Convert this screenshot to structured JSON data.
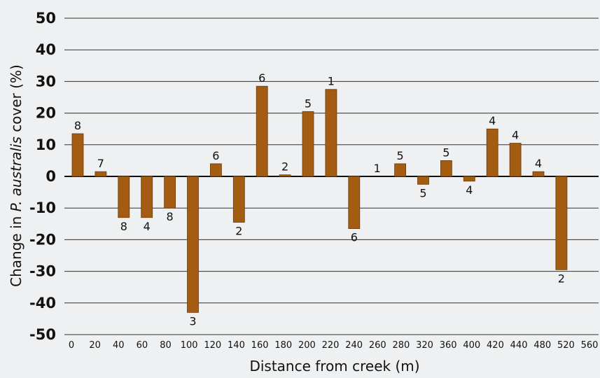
{
  "chart_data": {
    "type": "bar",
    "xlabel": "Distance from creek (m)",
    "ylabel_prefix": "Change in ",
    "ylabel_italic": "P. australis",
    "ylabel_suffix": " cover (%)",
    "ylim": [
      -50,
      50
    ],
    "yticks": [
      50,
      40,
      30,
      20,
      10,
      0,
      -10,
      -20,
      -30,
      -40,
      -50
    ],
    "grid": true,
    "x_tick_labels": [
      "0",
      "20",
      "40",
      "60",
      "80",
      "100",
      "120",
      "140",
      "160",
      "180",
      "200",
      "220",
      "240",
      "260",
      "280",
      "320",
      "360",
      "400",
      "420",
      "440",
      "480",
      "520",
      "560"
    ],
    "bars": [
      {
        "x": "0",
        "value": 13.5,
        "n": "8"
      },
      {
        "x": "20",
        "value": 1.5,
        "n": "7"
      },
      {
        "x": "40",
        "value": -13,
        "n": "8"
      },
      {
        "x": "60",
        "value": -13,
        "n": "4"
      },
      {
        "x": "80",
        "value": -10,
        "n": "8"
      },
      {
        "x": "100",
        "value": -43,
        "n": "3"
      },
      {
        "x": "120",
        "value": 4,
        "n": "6"
      },
      {
        "x": "140",
        "value": -14.5,
        "n": "2"
      },
      {
        "x": "160",
        "value": 28.5,
        "n": "6"
      },
      {
        "x": "180",
        "value": 0.5,
        "n": "2"
      },
      {
        "x": "200",
        "value": 20.5,
        "n": "5"
      },
      {
        "x": "220",
        "value": 27.5,
        "n": "1"
      },
      {
        "x": "240",
        "value": -16.5,
        "n": "6"
      },
      {
        "x": "260",
        "value": 0,
        "n": "1"
      },
      {
        "x": "280",
        "value": 4,
        "n": "5"
      },
      {
        "x": "320",
        "value": -2.5,
        "n": "5"
      },
      {
        "x": "360",
        "value": 5,
        "n": "5"
      },
      {
        "x": "400",
        "value": -1.5,
        "n": "4"
      },
      {
        "x": "440",
        "value": 15,
        "n": "4"
      },
      {
        "x": "480",
        "value": 10.5,
        "n": "4"
      },
      {
        "x": "520",
        "value": 1.5,
        "n": "4"
      },
      {
        "x": "560",
        "value": -29.5,
        "n": "2"
      }
    ],
    "colors": {
      "bar": "#a35c12",
      "bar_edge": "#6b3a08",
      "grid": "#333333",
      "axis": "#111111"
    }
  }
}
